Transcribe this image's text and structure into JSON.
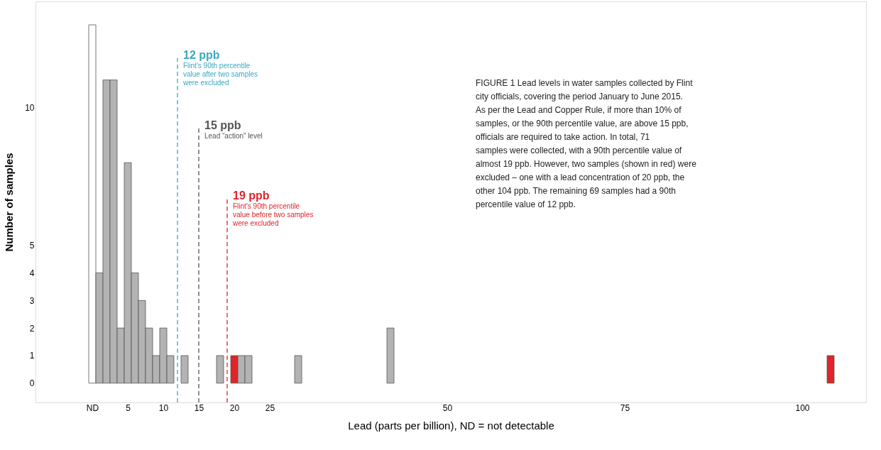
{
  "chart_data": {
    "type": "bar",
    "xlabel": "Lead (parts per billion), ND = not detectable",
    "ylabel": "Number of samples",
    "x": [
      0,
      1,
      2,
      3,
      4,
      5,
      6,
      7,
      8,
      9,
      10,
      11,
      13,
      18,
      20,
      21,
      22,
      29,
      42,
      104
    ],
    "values": [
      13,
      4,
      11,
      11,
      2,
      8,
      4,
      3,
      2,
      1,
      2,
      1,
      1,
      1,
      1,
      1,
      1,
      1,
      2,
      1
    ],
    "colors": [
      "#ffffff",
      "#b3b3b3",
      "#b3b3b3",
      "#b3b3b3",
      "#b3b3b3",
      "#b3b3b3",
      "#b3b3b3",
      "#b3b3b3",
      "#b3b3b3",
      "#b3b3b3",
      "#b3b3b3",
      "#b3b3b3",
      "#b3b3b3",
      "#b3b3b3",
      "#e0242a",
      "#b3b3b3",
      "#b3b3b3",
      "#b3b3b3",
      "#b3b3b3",
      "#e0242a"
    ],
    "xlim": [
      -8,
      109
    ],
    "ylim": [
      -0.7,
      13.85
    ],
    "xticks": [
      {
        "value": 0,
        "label": "ND"
      },
      5,
      10,
      15,
      20,
      25,
      50,
      75,
      100
    ],
    "yticks": [
      0,
      1,
      2,
      3,
      4,
      5,
      10
    ],
    "grid": false,
    "ref_lines": [
      {
        "axis": "x",
        "value": 12,
        "label": "12 ppb",
        "color": "#3aa8c1",
        "line_style": "dashed"
      },
      {
        "axis": "x",
        "value": 15,
        "label": "15 ppb",
        "color": "#555555",
        "line_style": "dashed"
      },
      {
        "axis": "x",
        "value": 19,
        "label": "19 ppb",
        "color": "#e0242a",
        "line_style": "dashed"
      }
    ],
    "annotations": [
      {
        "text": "Flint's 90th percentile value after two samples were excluded",
        "x": 12,
        "y": 11.8
      },
      {
        "text": "Lead “action” level",
        "x": 15,
        "y": 9.25
      },
      {
        "text": "Flint's 90th percentile value before two samples were excluded",
        "x": 19,
        "y": 6.7
      },
      "FIGURE 1 Lead levels in water samples collected by Flint city officials, covering the period January to June 2015. As per the Lead and Copper Rule, if more than 10% of samples, or the 90th percentile value, are above 15 ppb, officials are required to take action. In total, 71 samples were collected, with a 90th percentile value of almost 19 ppb. However, two samples (shown in red) were excluded – one with a lead concentration of 20 ppb, the other 104 ppb. The remaining 69 samples had a 90th percentile value of 12 ppb."
    ]
  }
}
